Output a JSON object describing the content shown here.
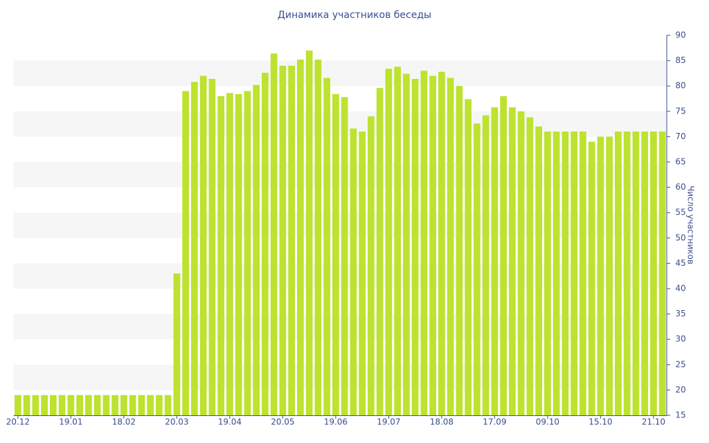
{
  "chart_data": {
    "type": "bar",
    "title": "Динамика участников беседы",
    "y_label": "Число участников",
    "categories": [
      "20.12",
      null,
      null,
      null,
      null,
      null,
      "19.01",
      null,
      null,
      null,
      null,
      null,
      "18.02",
      null,
      null,
      null,
      null,
      null,
      "20.03",
      null,
      null,
      null,
      null,
      null,
      "19.04",
      null,
      null,
      null,
      null,
      null,
      "20.05",
      null,
      null,
      null,
      null,
      null,
      "19.06",
      null,
      null,
      null,
      null,
      null,
      "19.07",
      null,
      null,
      null,
      null,
      null,
      "18.08",
      null,
      null,
      null,
      null,
      null,
      "17.09",
      null,
      null,
      null,
      null,
      null,
      "09.10",
      null,
      null,
      null,
      null,
      null,
      "15.10",
      null,
      null,
      null,
      null,
      null,
      "21.10",
      null
    ],
    "values": [
      19,
      19,
      19,
      19,
      19,
      19,
      19,
      19,
      19,
      19,
      19,
      19,
      19,
      19,
      19,
      19,
      19,
      19,
      43,
      79,
      80.8,
      82,
      81.4,
      78,
      78.6,
      78.4,
      79,
      80.2,
      82.6,
      86.4,
      84,
      84,
      85.2,
      87,
      85.2,
      81.6,
      78.4,
      77.8,
      71.6,
      71,
      74,
      79.6,
      83.4,
      83.8,
      82.4,
      81.4,
      83,
      82,
      82.8,
      81.6,
      80,
      77.4,
      72.6,
      74.2,
      75.8,
      78,
      75.8,
      75,
      73.8,
      72,
      71,
      71,
      71,
      71,
      71,
      69,
      70,
      70,
      71,
      71,
      71,
      71,
      71,
      71
    ],
    "color": "#bde22f",
    "ylim": [
      15,
      90
    ],
    "yticks": [
      15,
      20,
      25,
      30,
      35,
      40,
      45,
      50,
      55,
      60,
      65,
      70,
      75,
      80,
      85,
      90
    ],
    "y_axis_side": "right",
    "grid": "bands"
  }
}
